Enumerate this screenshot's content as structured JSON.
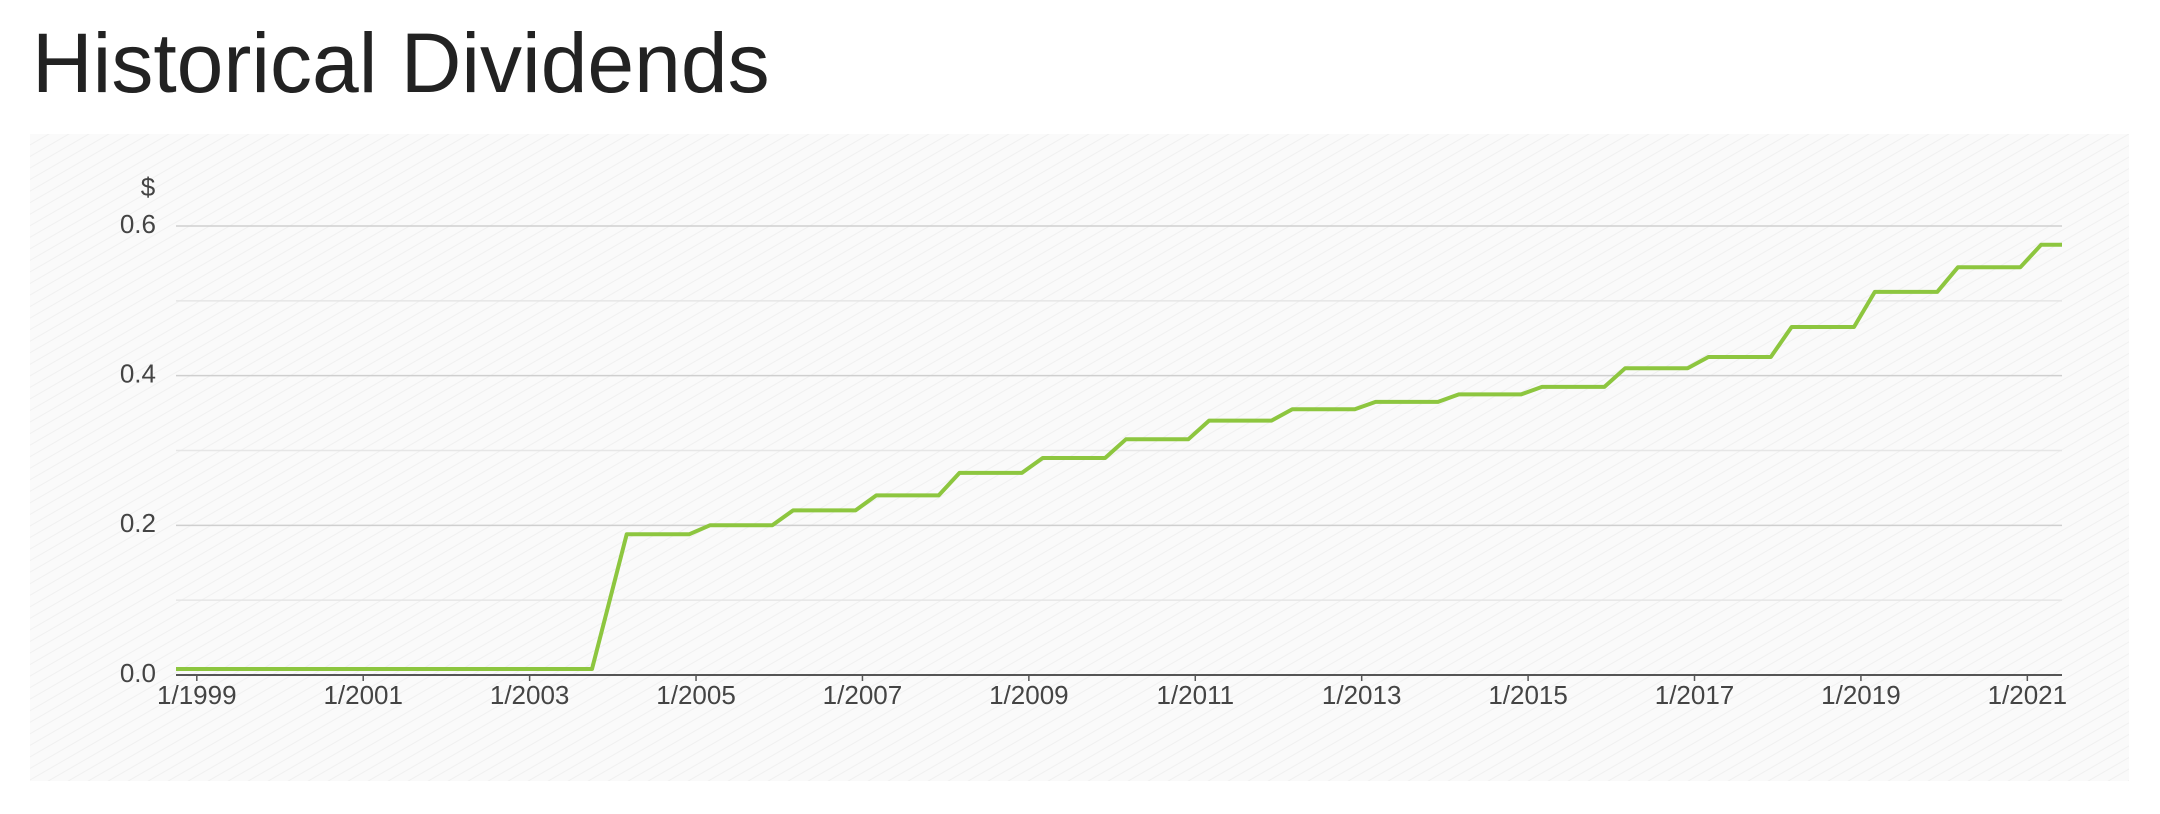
{
  "chart_data": {
    "type": "line",
    "title": "Historical Dividends",
    "y_label": "$",
    "x": [
      "10/1998",
      "10/2003",
      "3/2004",
      "12/2004",
      "3/2005",
      "12/2005",
      "3/2006",
      "12/2006",
      "3/2007",
      "12/2007",
      "3/2008",
      "12/2008",
      "3/2009",
      "12/2009",
      "3/2010",
      "12/2010",
      "3/2011",
      "12/2011",
      "3/2012",
      "12/2012",
      "3/2013",
      "12/2013",
      "3/2014",
      "12/2014",
      "3/2015",
      "12/2015",
      "3/2016",
      "12/2016",
      "3/2017",
      "12/2017",
      "3/2018",
      "12/2018",
      "3/2019",
      "12/2019",
      "3/2020",
      "12/2020",
      "3/2021",
      "6/2021"
    ],
    "series": [
      {
        "color": "#8dc63f",
        "values": [
          0.008,
          0.008,
          0.188,
          0.188,
          0.2,
          0.2,
          0.22,
          0.22,
          0.24,
          0.24,
          0.27,
          0.27,
          0.29,
          0.29,
          0.315,
          0.315,
          0.34,
          0.34,
          0.355,
          0.355,
          0.365,
          0.365,
          0.375,
          0.375,
          0.385,
          0.385,
          0.41,
          0.41,
          0.425,
          0.425,
          0.465,
          0.465,
          0.512,
          0.512,
          0.545,
          0.545,
          0.575,
          0.575
        ]
      }
    ],
    "xlim": [
      "10/1998",
      "6/2021"
    ],
    "xticks": [
      "1/1999",
      "1/2001",
      "1/2003",
      "1/2005",
      "1/2007",
      "1/2009",
      "1/2011",
      "1/2013",
      "1/2015",
      "1/2017",
      "1/2019",
      "1/2021"
    ],
    "ylim": [
      0,
      0.6
    ],
    "yticks": [
      {
        "value": 0,
        "label": "0.0"
      },
      {
        "value": 0.2,
        "label": "0.2"
      },
      {
        "value": 0.4,
        "label": "0.4"
      },
      {
        "value": 0.6,
        "label": "0.6"
      }
    ],
    "minor_yticks": [
      0.1,
      0.3,
      0.5
    ],
    "grid": true
  }
}
